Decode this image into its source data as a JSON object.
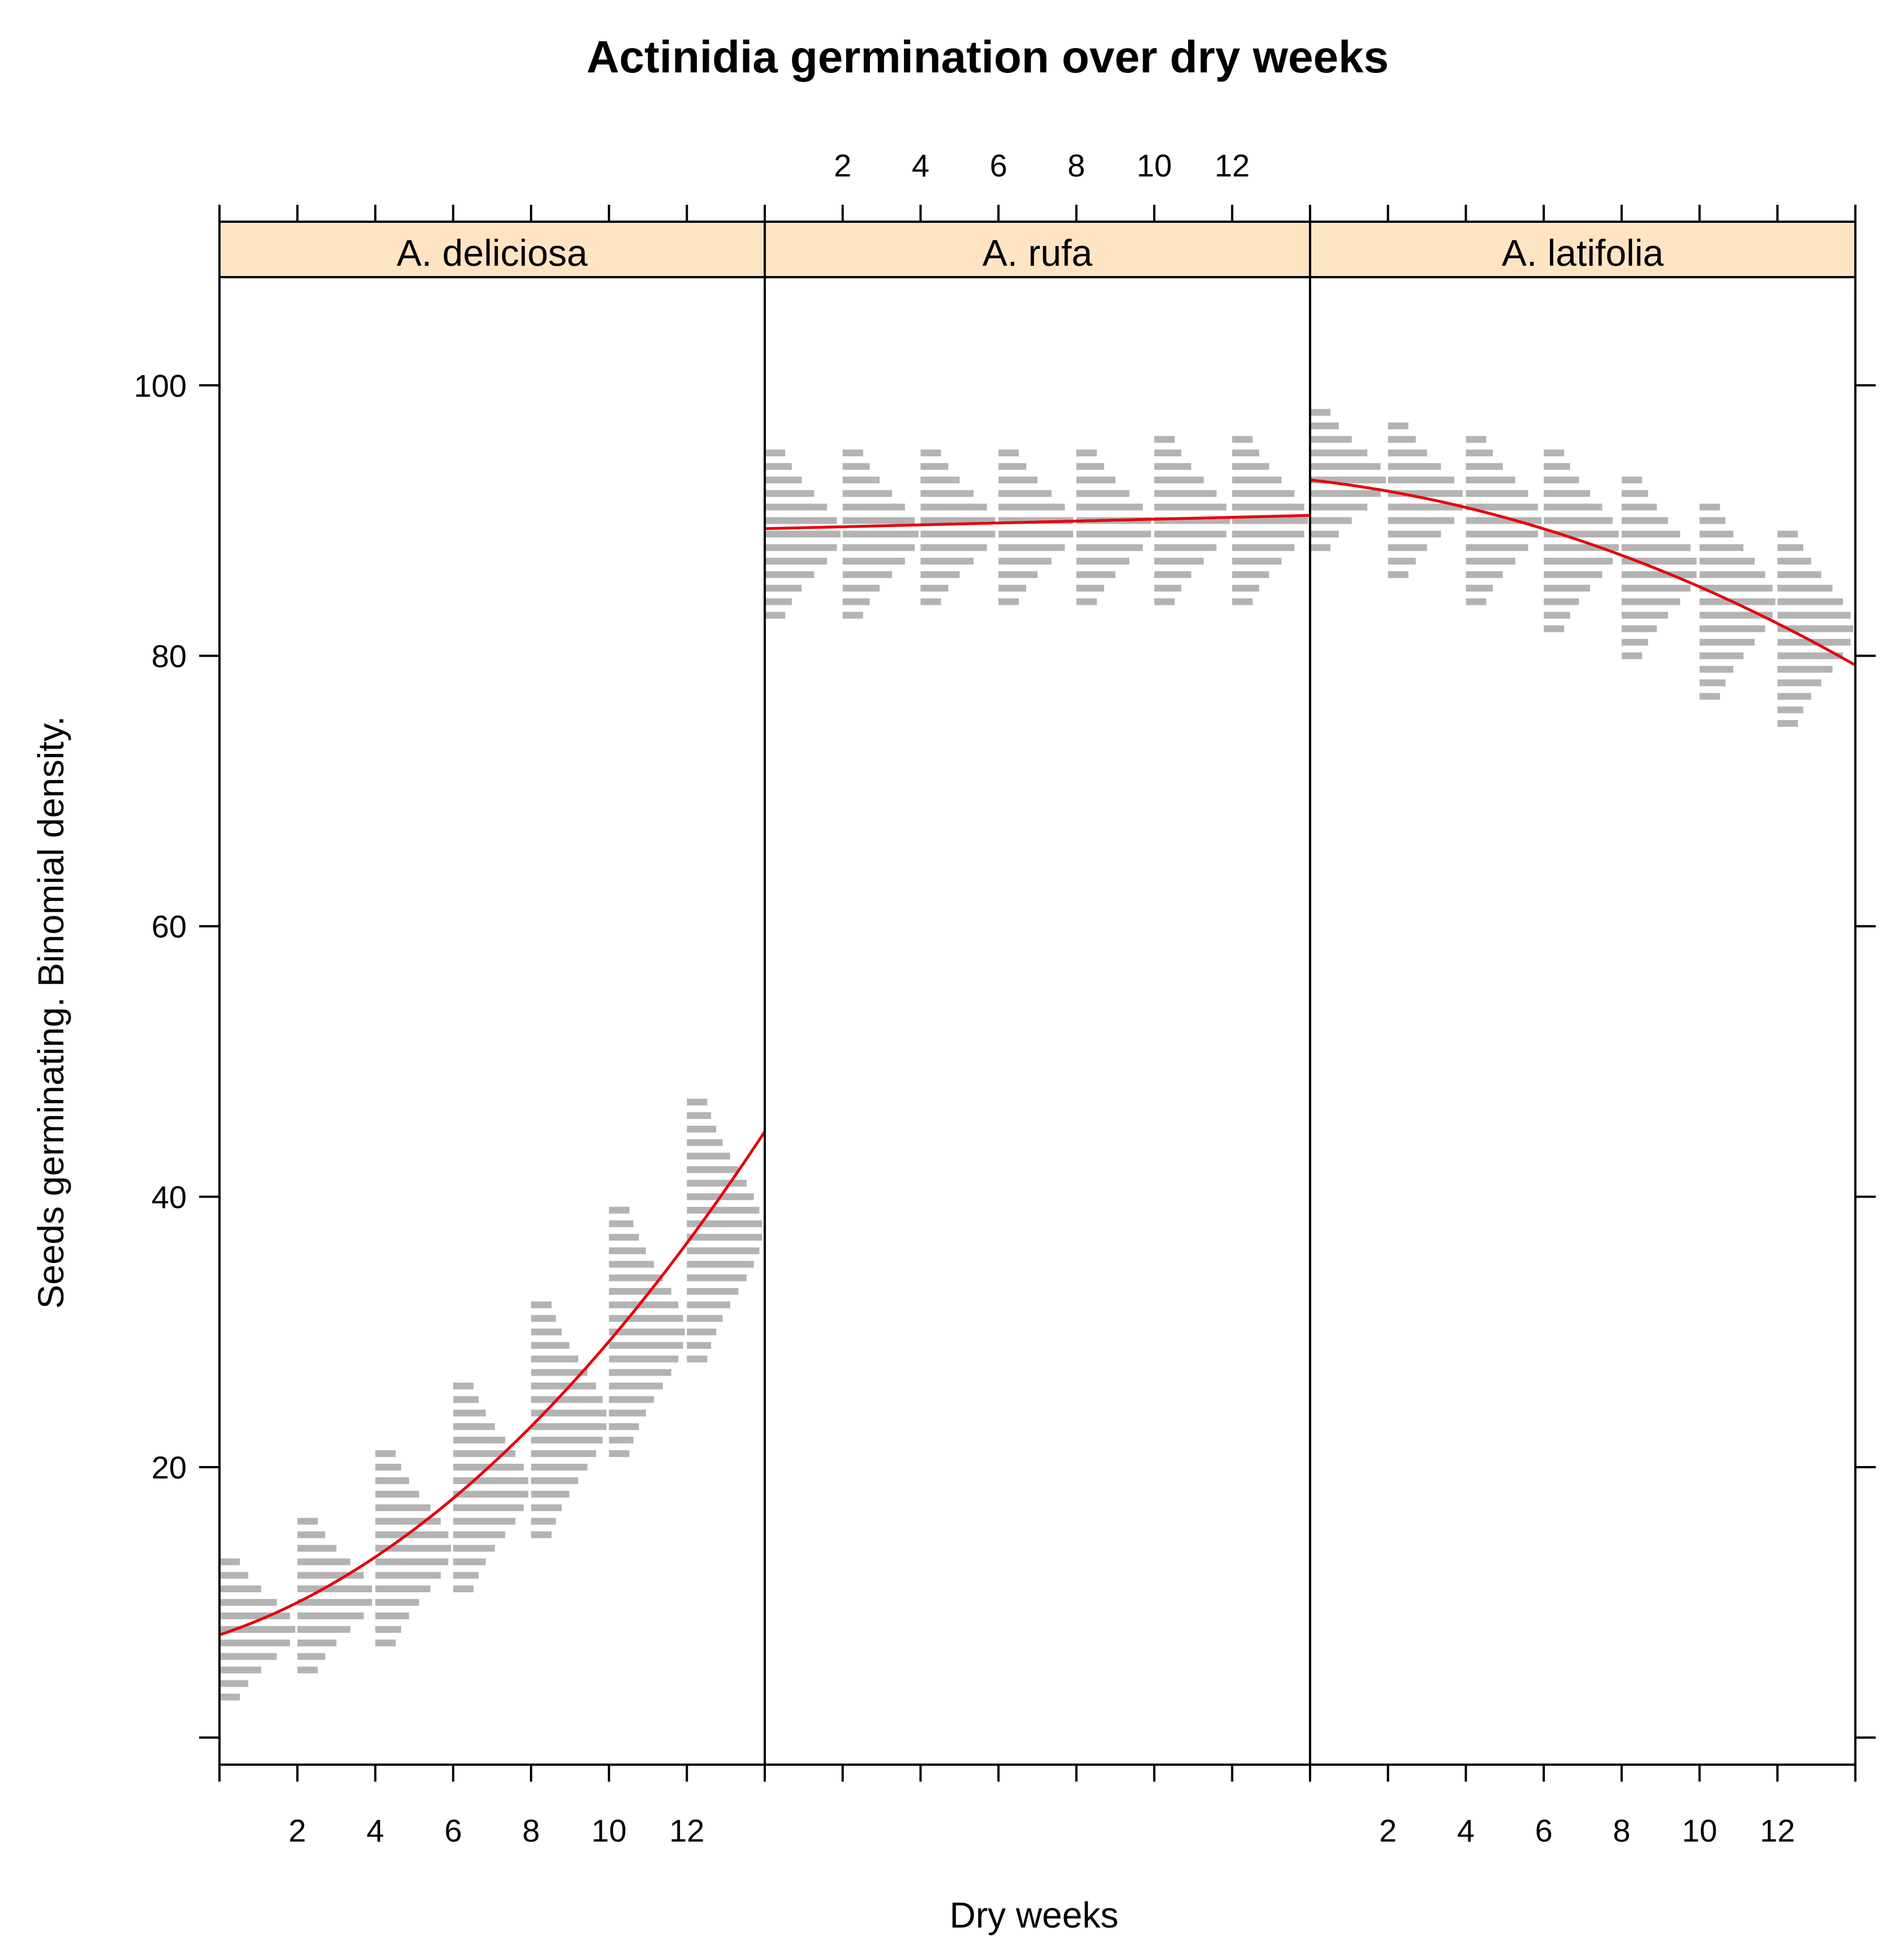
{
  "chart_data": {
    "type": "scatter",
    "title": "Actinidia germination over dry weeks",
    "xlabel": "Dry weeks",
    "ylabel": "Seeds germinating.  Binomial density.",
    "xlim": [
      0,
      14
    ],
    "ylim": [
      -2,
      108
    ],
    "x_ticks": [
      2,
      4,
      6,
      8,
      10,
      12
    ],
    "y_ticks": [
      0,
      20,
      40,
      60,
      80,
      100
    ],
    "y_tick_labels": [
      "20",
      "40",
      "60",
      "80",
      "100"
    ],
    "x_tick_labels_top_panel": [
      "A. rufa"
    ],
    "x_tick_labels_bottom_panels": [
      "A. deliciosa",
      "A. latifolia"
    ],
    "dry_weeks": [
      0,
      2,
      4,
      6,
      8,
      10,
      12
    ],
    "colors": {
      "strip_bg": "#ffe4c4",
      "density": "#b3b3b3",
      "fit": "#e8000b"
    },
    "panels": [
      {
        "name": "A. deliciosa",
        "fit_intercept": 7.6,
        "fit_linear": 0.95,
        "fit_quadratic": 0.122,
        "ranges": [
          [
            3,
            13
          ],
          [
            5,
            16
          ],
          [
            7,
            21
          ],
          [
            11,
            26
          ],
          [
            15,
            32
          ],
          [
            21,
            39
          ],
          [
            28,
            47
          ]
        ]
      },
      {
        "name": "A. rufa",
        "fit_intercept": 89.4,
        "fit_linear": 0.07,
        "fit_quadratic": 0,
        "ranges": [
          [
            83,
            95
          ],
          [
            83,
            95
          ],
          [
            84,
            95
          ],
          [
            84,
            95
          ],
          [
            84,
            95
          ],
          [
            84,
            96
          ],
          [
            84,
            96
          ]
        ]
      },
      {
        "name": "A. latifolia",
        "fit_intercept": 93.0,
        "fit_linear": -0.32,
        "fit_quadratic": -0.047,
        "ranges": [
          [
            88,
            98
          ],
          [
            86,
            97
          ],
          [
            84,
            96
          ],
          [
            82,
            95
          ],
          [
            80,
            93
          ],
          [
            77,
            91
          ],
          [
            75,
            89
          ]
        ]
      }
    ]
  }
}
